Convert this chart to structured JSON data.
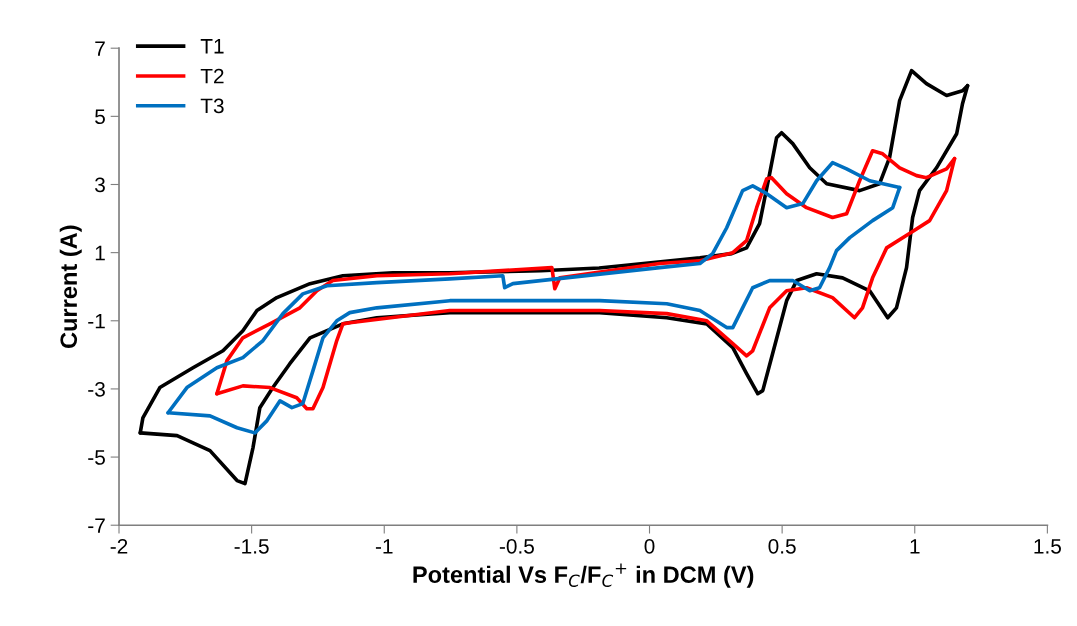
{
  "chart_data": {
    "type": "line",
    "xlabel": "Potential Vs F$_{C}$/F$_{C}$$^{+}$ in DCM (V)",
    "ylabel": "Current (A)",
    "xlim": [
      -2,
      1.5
    ],
    "xticks": [
      -2,
      -1.5,
      -1,
      -0.5,
      0,
      0.5,
      1,
      1.5
    ],
    "ylim": [
      -7,
      7
    ],
    "yticks": [
      -7,
      -5,
      -3,
      -1,
      1,
      3,
      5,
      7
    ],
    "grid": false,
    "legend": "top left",
    "marker": "none",
    "line_style": "solid",
    "series": [
      {
        "name": "T1",
        "color": "#000000",
        "x": [
          -1.92,
          -1.91,
          -1.846,
          -1.721,
          -1.608,
          -1.533,
          -1.48,
          -1.405,
          -1.28,
          -1.156,
          -0.968,
          -0.753,
          -0.41,
          -0.19,
          0.19,
          0.31,
          0.366,
          0.415,
          0.453,
          0.479,
          0.498,
          0.54,
          0.604,
          0.668,
          0.792,
          0.867,
          0.905,
          0.943,
          0.988,
          1.044,
          1.12,
          1.18,
          1.199
        ],
        "values": [
          -4.29,
          -3.85,
          -2.96,
          -2.38,
          -1.88,
          -1.29,
          -0.7,
          -0.32,
          0.09,
          0.32,
          0.41,
          0.41,
          0.47,
          0.55,
          0.85,
          0.97,
          1.14,
          1.85,
          3.32,
          4.37,
          4.52,
          4.2,
          3.49,
          3.02,
          2.82,
          3.02,
          3.79,
          5.46,
          6.34,
          5.96,
          5.61,
          5.75,
          5.9
        ]
      },
      {
        "color": "#000000",
        "x": [
          1.199,
          1.18,
          1.158,
          1.082,
          1.018,
          0.992,
          0.969,
          0.931,
          0.898,
          0.83,
          0.728,
          0.63,
          0.555,
          0.517,
          0.464,
          0.427,
          0.408,
          0.366,
          0.314,
          0.216,
          0.065,
          -0.188,
          -0.564,
          -0.753,
          -1.028,
          -1.156,
          -1.28,
          -1.356,
          -1.42,
          -1.469,
          -1.495,
          -1.525,
          -1.555,
          -1.657,
          -1.781,
          -1.92
        ],
        "values": [
          5.9,
          5.37,
          4.49,
          3.49,
          2.82,
          2.03,
          0.56,
          -0.62,
          -0.91,
          -0.12,
          0.26,
          0.38,
          0.18,
          -0.41,
          -1.97,
          -3.05,
          -3.14,
          -2.55,
          -1.79,
          -1.09,
          -0.91,
          -0.76,
          -0.76,
          -0.76,
          -0.91,
          -1.09,
          -1.5,
          -2.26,
          -2.96,
          -3.55,
          -4.73,
          -5.78,
          -5.69,
          -4.81,
          -4.37,
          -4.29
        ]
      },
      {
        "name": "T2",
        "color": "#ff0000",
        "x": [
          -1.631,
          -1.593,
          -1.533,
          -1.431,
          -1.318,
          -1.254,
          -1.194,
          -1.028,
          -0.753,
          -0.368,
          -0.357,
          -0.338,
          0.038,
          0.19,
          0.314,
          0.366,
          0.404,
          0.442,
          0.46,
          0.517,
          0.592,
          0.69,
          0.743,
          0.792,
          0.841,
          0.879,
          0.943,
          1.007,
          1.044,
          1.12,
          1.15
        ],
        "values": [
          -3.14,
          -2.17,
          -1.5,
          -1.09,
          -0.62,
          -0.12,
          0.18,
          0.32,
          0.38,
          0.56,
          -0.06,
          0.26,
          0.68,
          0.76,
          1.0,
          1.35,
          2.32,
          3.17,
          3.2,
          2.73,
          2.32,
          2.03,
          2.14,
          3.11,
          3.99,
          3.9,
          3.49,
          3.26,
          3.2,
          3.46,
          3.76
        ]
      },
      {
        "color": "#ff0000",
        "x": [
          1.15,
          1.12,
          1.056,
          0.98,
          0.894,
          0.841,
          0.803,
          0.773,
          0.69,
          0.592,
          0.517,
          0.453,
          0.389,
          0.366,
          0.314,
          0.216,
          0.065,
          -0.188,
          -0.564,
          -0.753,
          -1.13,
          -1.156,
          -1.179,
          -1.231,
          -1.269,
          -1.292,
          -1.33,
          -1.431,
          -1.533,
          -1.631
        ],
        "values": [
          3.76,
          2.82,
          1.94,
          1.56,
          1.14,
          0.26,
          -0.62,
          -0.91,
          -0.32,
          -0.03,
          -0.12,
          -0.62,
          -1.88,
          -2.03,
          -1.67,
          -1.0,
          -0.79,
          -0.7,
          -0.7,
          -0.7,
          -1.06,
          -1.09,
          -1.58,
          -2.96,
          -3.58,
          -3.58,
          -3.26,
          -2.96,
          -2.91,
          -3.14
        ]
      },
      {
        "name": "T3",
        "color": "#0070c0",
        "x": [
          -1.815,
          -1.744,
          -1.631,
          -1.533,
          -1.457,
          -1.382,
          -1.307,
          -1.216,
          -1.028,
          -0.753,
          -0.553,
          -0.546,
          -0.515,
          0.038,
          0.19,
          0.238,
          0.291,
          0.351,
          0.389,
          0.442,
          0.517,
          0.578,
          0.63,
          0.69,
          0.743,
          0.83,
          0.943
        ],
        "values": [
          -3.7,
          -2.96,
          -2.38,
          -2.08,
          -1.58,
          -0.79,
          -0.21,
          0.03,
          0.12,
          0.23,
          0.32,
          -0.03,
          0.09,
          0.56,
          0.68,
          0.97,
          1.73,
          2.82,
          2.96,
          2.73,
          2.32,
          2.44,
          3.11,
          3.64,
          3.46,
          3.11,
          2.91
        ]
      },
      {
        "color": "#0070c0",
        "x": [
          0.943,
          0.917,
          0.841,
          0.755,
          0.705,
          0.679,
          0.641,
          0.604,
          0.54,
          0.453,
          0.389,
          0.351,
          0.314,
          0.291,
          0.19,
          0.065,
          -0.188,
          -0.564,
          -0.753,
          -1.028,
          -1.13,
          -1.179,
          -1.231,
          -1.269,
          -1.307,
          -1.348,
          -1.393,
          -1.442,
          -1.488,
          -1.555,
          -1.657,
          -1.815
        ],
        "values": [
          2.91,
          2.32,
          1.94,
          1.44,
          1.06,
          0.56,
          -0.03,
          -0.12,
          0.18,
          0.18,
          -0.03,
          -0.62,
          -1.2,
          -1.2,
          -0.7,
          -0.5,
          -0.41,
          -0.41,
          -0.41,
          -0.62,
          -0.76,
          -1.0,
          -1.5,
          -2.47,
          -3.43,
          -3.55,
          -3.35,
          -3.93,
          -4.29,
          -4.14,
          -3.79,
          -3.7
        ]
      }
    ]
  }
}
